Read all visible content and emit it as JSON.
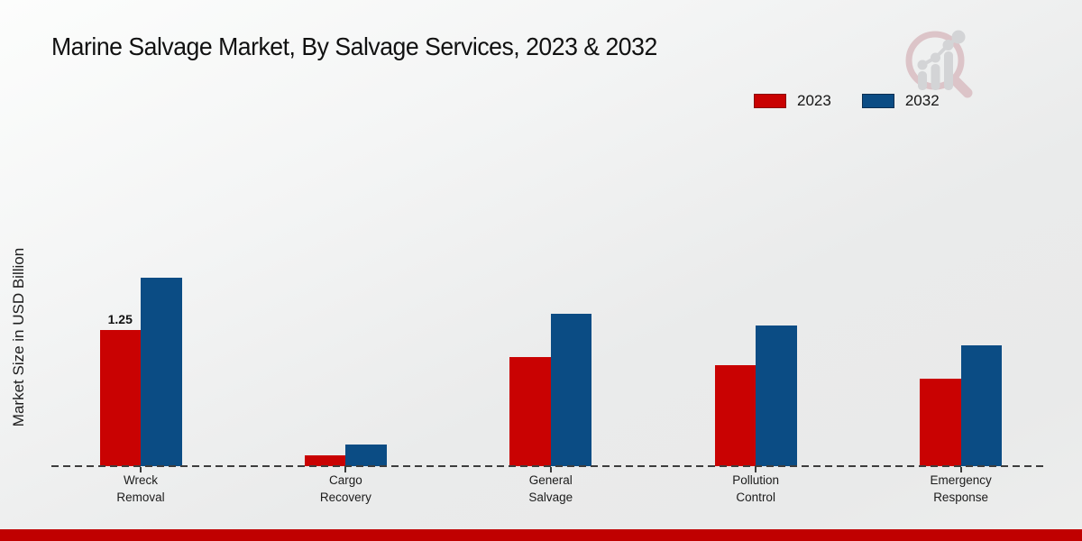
{
  "page": {
    "title": "Marine Salvage Market, By Salvage Services, 2023 & 2032",
    "ylabel": "Market Size in USD Billion",
    "footer_strip_color": "#c00000",
    "watermark_icon": "magnifier-bar-chart-logo"
  },
  "legend": {
    "items": [
      {
        "label": "2023",
        "color": "#c90202"
      },
      {
        "label": "2032",
        "color": "#0b4c84"
      }
    ]
  },
  "chart_data": {
    "type": "bar",
    "title": "Marine Salvage Market, By Salvage Services, 2023 & 2032",
    "xlabel": "",
    "ylabel": "Market Size in USD Billion",
    "categories": [
      "Wreck\nRemoval",
      "Cargo\nRecovery",
      "General\nSalvage",
      "Pollution\nControl",
      "Emergency\nResponse"
    ],
    "series": [
      {
        "name": "2023",
        "color": "#c90202",
        "values": [
          1.25,
          0.1,
          1.0,
          0.93,
          0.8
        ]
      },
      {
        "name": "2032",
        "color": "#0b4c84",
        "values": [
          1.73,
          0.2,
          1.4,
          1.29,
          1.11
        ]
      }
    ],
    "bar_labels": [
      {
        "series_index": 0,
        "category_index": 0,
        "text": "1.25"
      }
    ],
    "baseline_value": 0,
    "ylim": [
      0,
      2
    ],
    "grid": false,
    "baseline_style": "dashed",
    "legend_position": "top-right"
  }
}
